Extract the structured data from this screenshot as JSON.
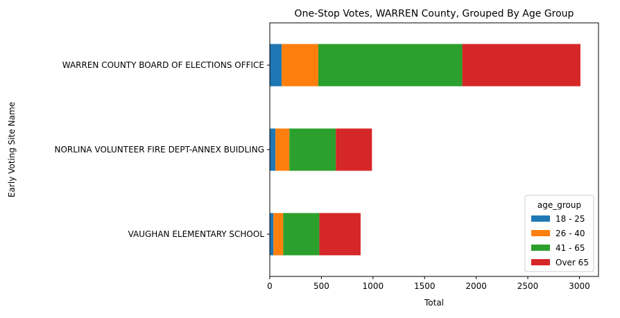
{
  "chart_data": {
    "type": "bar",
    "orientation": "horizontal",
    "stacked": true,
    "title": "One-Stop Votes, WARREN County, Grouped By Age Group",
    "xlabel": "Total",
    "ylabel": "Early Voting Site Name",
    "xlim": [
      0,
      3185
    ],
    "xticks": [
      0,
      500,
      1000,
      1500,
      2000,
      2500,
      3000
    ],
    "categories": [
      "WARREN COUNTY BOARD OF ELECTIONS OFFICE",
      "NORLINA VOLUNTEER FIRE DEPT-ANNEX BUIDLING",
      "VAUGHAN ELEMENTARY SCHOOL"
    ],
    "series": [
      {
        "name": "18 - 25",
        "color": "#1f77b4",
        "values": [
          115,
          55,
          35
        ]
      },
      {
        "name": "26 - 40",
        "color": "#ff7f0e",
        "values": [
          355,
          135,
          95
        ]
      },
      {
        "name": "41 - 65",
        "color": "#2ca02c",
        "values": [
          1395,
          450,
          350
        ]
      },
      {
        "name": "Over 65",
        "color": "#d62728",
        "values": [
          1145,
          350,
          400
        ]
      }
    ],
    "legend": {
      "title": "age_group",
      "placement": "bottom-right"
    },
    "grid": false
  }
}
